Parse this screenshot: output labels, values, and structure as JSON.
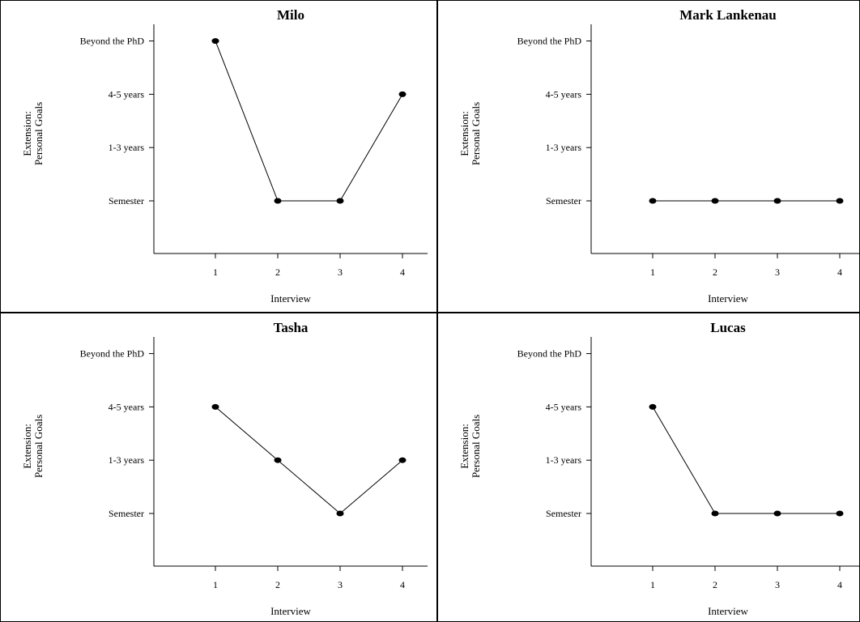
{
  "chart_data": [
    {
      "type": "line",
      "title": "Milo",
      "ylabel": [
        "Extension:",
        "Personal Goals"
      ],
      "xlabel": "Interview",
      "x": [
        1,
        2,
        3,
        4
      ],
      "y_categories": [
        "Semester",
        "1-3 years",
        "4-5 years",
        "Beyond the PhD"
      ],
      "values": [
        "Beyond the PhD",
        "Semester",
        "Semester",
        "4-5 years"
      ]
    },
    {
      "type": "line",
      "title": "Mark Lankenau",
      "ylabel": [
        "Extension:",
        "Personal Goals"
      ],
      "xlabel": "Interview",
      "x": [
        1,
        2,
        3,
        4
      ],
      "y_categories": [
        "Semester",
        "1-3 years",
        "4-5 years",
        "Beyond the PhD"
      ],
      "values": [
        "Semester",
        "Semester",
        "Semester",
        "Semester"
      ]
    },
    {
      "type": "line",
      "title": "Tasha",
      "ylabel": [
        "Extension:",
        "Personal Goals"
      ],
      "xlabel": "Interview",
      "x": [
        1,
        2,
        3,
        4
      ],
      "y_categories": [
        "Semester",
        "1-3 years",
        "4-5 years",
        "Beyond the PhD"
      ],
      "values": [
        "4-5 years",
        "1-3 years",
        "Semester",
        "1-3 years"
      ]
    },
    {
      "type": "line",
      "title": "Lucas",
      "ylabel": [
        "Extension:",
        "Personal Goals"
      ],
      "xlabel": "Interview",
      "x": [
        1,
        2,
        3,
        4
      ],
      "y_categories": [
        "Semester",
        "1-3 years",
        "4-5 years",
        "Beyond the PhD"
      ],
      "values": [
        "4-5 years",
        "Semester",
        "Semester",
        "Semester"
      ]
    }
  ]
}
